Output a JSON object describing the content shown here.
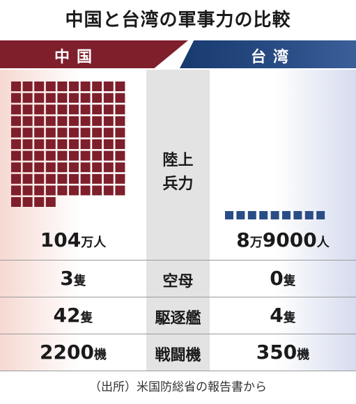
{
  "title": "中国と台湾の軍事力の比較",
  "header": {
    "left": "中国",
    "right": "台湾"
  },
  "colors": {
    "china": "#7e1f2b",
    "taiwan": "#2a4d86",
    "middle": "#e3e3e3"
  },
  "chart_data": {
    "type": "table",
    "columns": [
      "中国",
      "",
      "台湾"
    ],
    "rows": [
      {
        "category": "陸上兵力",
        "china": {
          "num": "104",
          "unit": "万人"
        },
        "taiwan": {
          "num": "8",
          "mid": "万",
          "num2": "9000",
          "unit": "人"
        },
        "china_value": 1040000,
        "taiwan_value": 89000
      },
      {
        "category": "空母",
        "china": {
          "num": "3",
          "unit": "隻"
        },
        "taiwan": {
          "num": "0",
          "unit": "隻"
        },
        "china_value": 3,
        "taiwan_value": 0
      },
      {
        "category": "駆逐艦",
        "china": {
          "num": "42",
          "unit": "隻"
        },
        "taiwan": {
          "num": "4",
          "unit": "隻"
        },
        "china_value": 42,
        "taiwan_value": 4
      },
      {
        "category": "戦闘機",
        "china": {
          "num": "2200",
          "unit": "機"
        },
        "taiwan": {
          "num": "350",
          "unit": "機"
        },
        "china_value": 2200,
        "taiwan_value": 350
      }
    ],
    "pictogram": {
      "china_squares": 104,
      "taiwan_squares": 9
    }
  },
  "labels": {
    "ground_line1": "陸上",
    "ground_line2": "兵力"
  },
  "source": "（出所）米国防総省の報告書から"
}
